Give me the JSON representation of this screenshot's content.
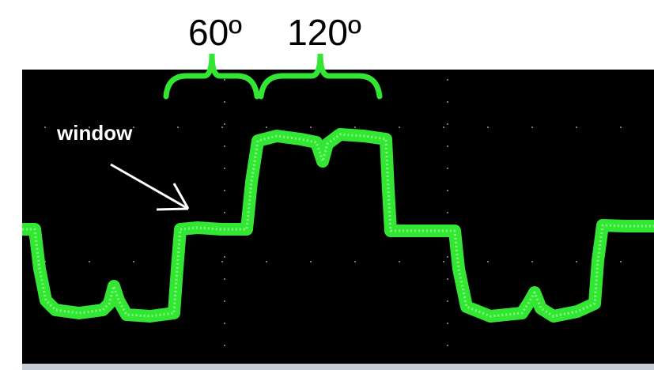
{
  "labels": {
    "angle_left": "60º",
    "angle_right": "120º",
    "window": "window"
  }
}
